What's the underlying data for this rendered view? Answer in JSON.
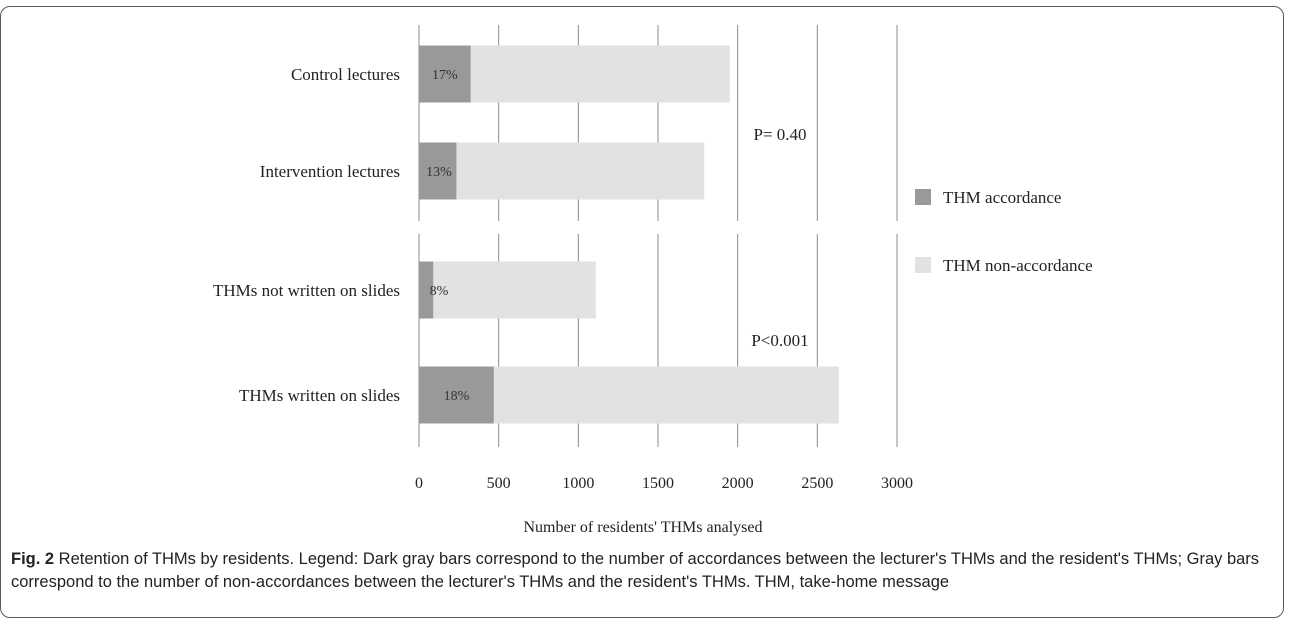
{
  "chart_data": {
    "type": "bar",
    "orientation": "horizontal",
    "stacked": true,
    "categories": [
      "Control lectures",
      "Intervention lectures",
      "THMs not written on slides",
      "THMs written on slides"
    ],
    "series": [
      {
        "name": "THM accordance",
        "color": "#999999",
        "values": [
          325,
          235,
          90,
          470
        ]
      },
      {
        "name": "THM non-accordance",
        "color": "#e2e2e2",
        "values": [
          1625,
          1555,
          1020,
          2165
        ]
      }
    ],
    "bar_labels": [
      "17%",
      "13%",
      "8%",
      "18%"
    ],
    "xlabel": "Number of residents' THMs analysed",
    "ylabel": "",
    "xlim": [
      0,
      3000
    ],
    "xticks": [
      0,
      500,
      1000,
      1500,
      2000,
      2500,
      3000
    ],
    "grid": "vertical",
    "legend_position": "right",
    "annotations": [
      {
        "text": "P= 0.40",
        "group": "lectures"
      },
      {
        "text": "P<0.001",
        "group": "slides"
      }
    ]
  },
  "caption": {
    "label": "Fig. 2",
    "text": " Retention of THMs by residents. Legend: Dark gray bars correspond to the number of accordances between the lecturer's THMs and the resident's THMs; Gray bars correspond to the number of non-accordances between the lecturer's THMs and the resident's THMs. THM, take-home message"
  }
}
